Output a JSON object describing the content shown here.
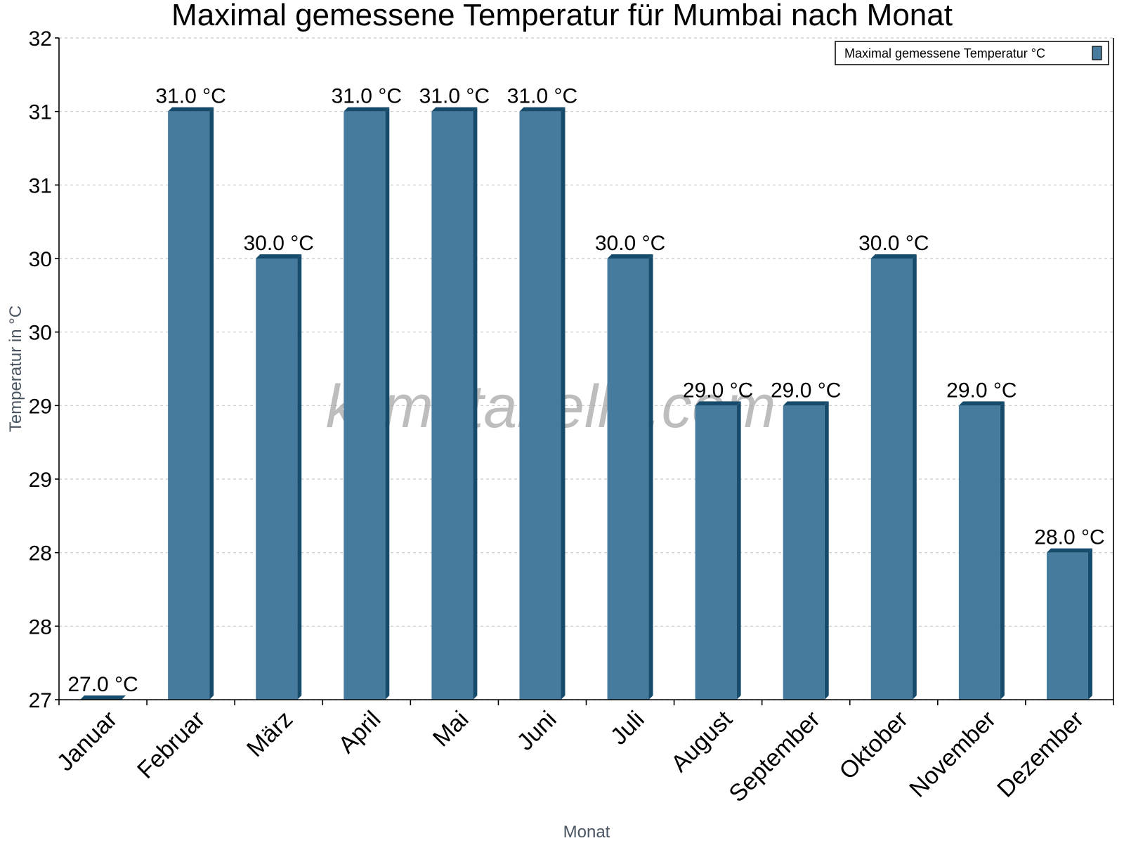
{
  "chart_data": {
    "type": "bar",
    "title": "Maximal gemessene Temperatur für Mumbai nach Monat",
    "xlabel": "Monat",
    "ylabel": "Temperatur in °C",
    "categories": [
      "Januar",
      "Februar",
      "März",
      "April",
      "Mai",
      "Juni",
      "Juli",
      "August",
      "September",
      "Oktober",
      "November",
      "Dezember"
    ],
    "series": [
      {
        "name": "Maximal gemessene Temperatur °C",
        "values": [
          27.0,
          31.0,
          30.0,
          31.0,
          31.0,
          31.0,
          30.0,
          29.0,
          29.0,
          30.0,
          29.0,
          28.0
        ],
        "labels": [
          "27.0 °C",
          "31.0 °C",
          "30.0 °C",
          "31.0 °C",
          "31.0 °C",
          "31.0 °C",
          "30.0 °C",
          "29.0 °C",
          "29.0 °C",
          "30.0 °C",
          "29.0 °C",
          "28.0 °C"
        ],
        "color": "#467b9d",
        "side_color": "#174b6b"
      }
    ],
    "ylim": [
      27,
      31.5
    ],
    "ytick_values": [
      31.5,
      31.0,
      30.5,
      30.0,
      29.5,
      29.0,
      28.5,
      28.0,
      27.5,
      27.0
    ],
    "ytick_labels": [
      "32",
      "31",
      "31",
      "30",
      "30",
      "29",
      "29",
      "28",
      "28",
      "27"
    ],
    "grid": true,
    "legend_position": "top-right",
    "watermark": "klimatabelle.com"
  },
  "legend": {
    "label": "Maximal gemessene Temperatur °C"
  }
}
